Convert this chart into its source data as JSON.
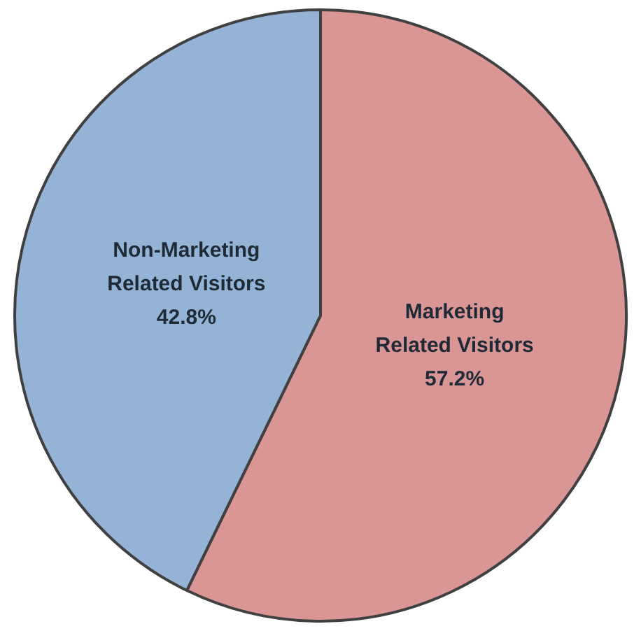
{
  "chart_data": {
    "type": "pie",
    "categories": [
      "Marketing Related Visitors",
      "Non-Marketing Related Visitors"
    ],
    "values": [
      57.2,
      42.8
    ],
    "value_labels": [
      "57.2%",
      "42.8%"
    ],
    "colors": [
      "#d99694",
      "#95b3d7"
    ],
    "legend": false
  }
}
